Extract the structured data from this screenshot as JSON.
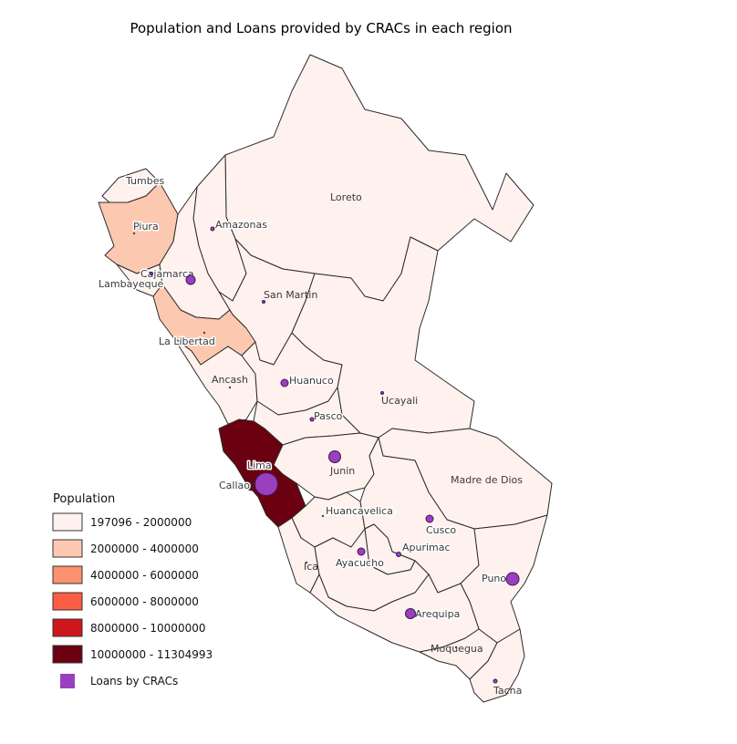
{
  "title": "Population and Loans provided by CRACs in each region",
  "colors": {
    "class1": "#fff2ee",
    "class2": "#fcc9b0",
    "class3": "#fc9170",
    "class4": "#fb5c44",
    "class5": "#cd171c",
    "class6": "#6b0110",
    "loans": "#9a3fbf"
  },
  "legend": {
    "title": "Population",
    "items": [
      {
        "label": "197096 - 2000000",
        "color": "#fff2ee"
      },
      {
        "label": "2000000 - 4000000",
        "color": "#fcc9b0"
      },
      {
        "label": "4000000 - 6000000",
        "color": "#fc9170"
      },
      {
        "label": "6000000 - 8000000",
        "color": "#fb5c44"
      },
      {
        "label": "8000000 - 10000000",
        "color": "#cd171c"
      },
      {
        "label": "10000000 - 11304993",
        "color": "#6b0110"
      }
    ],
    "loans_label": "Loans by CRACs"
  },
  "regions": {
    "tumbes": "Tumbes",
    "piura": "Piura",
    "lambayeque": "Lambayeque",
    "cajamarca": "Cajamarca",
    "amazonas": "Amazonas",
    "loreto": "Loreto",
    "san_martin": "San Martin",
    "la_libertad": "La Libertad",
    "ancash": "Ancash",
    "huanuco": "Huanuco",
    "ucayali": "Ucayali",
    "pasco": "Pasco",
    "lima": "Lima",
    "callao": "Callao",
    "junin": "Junin",
    "madre_de_dios": "Madre de Dios",
    "huancavelica": "Huancavelica",
    "cusco": "Cusco",
    "apurimac": "Apurimac",
    "ica": "Ica",
    "ayacucho": "Ayacucho",
    "puno": "Puno",
    "arequipa": "Arequipa",
    "moquegua": "Moquegua",
    "tacna": "Tacna"
  }
}
